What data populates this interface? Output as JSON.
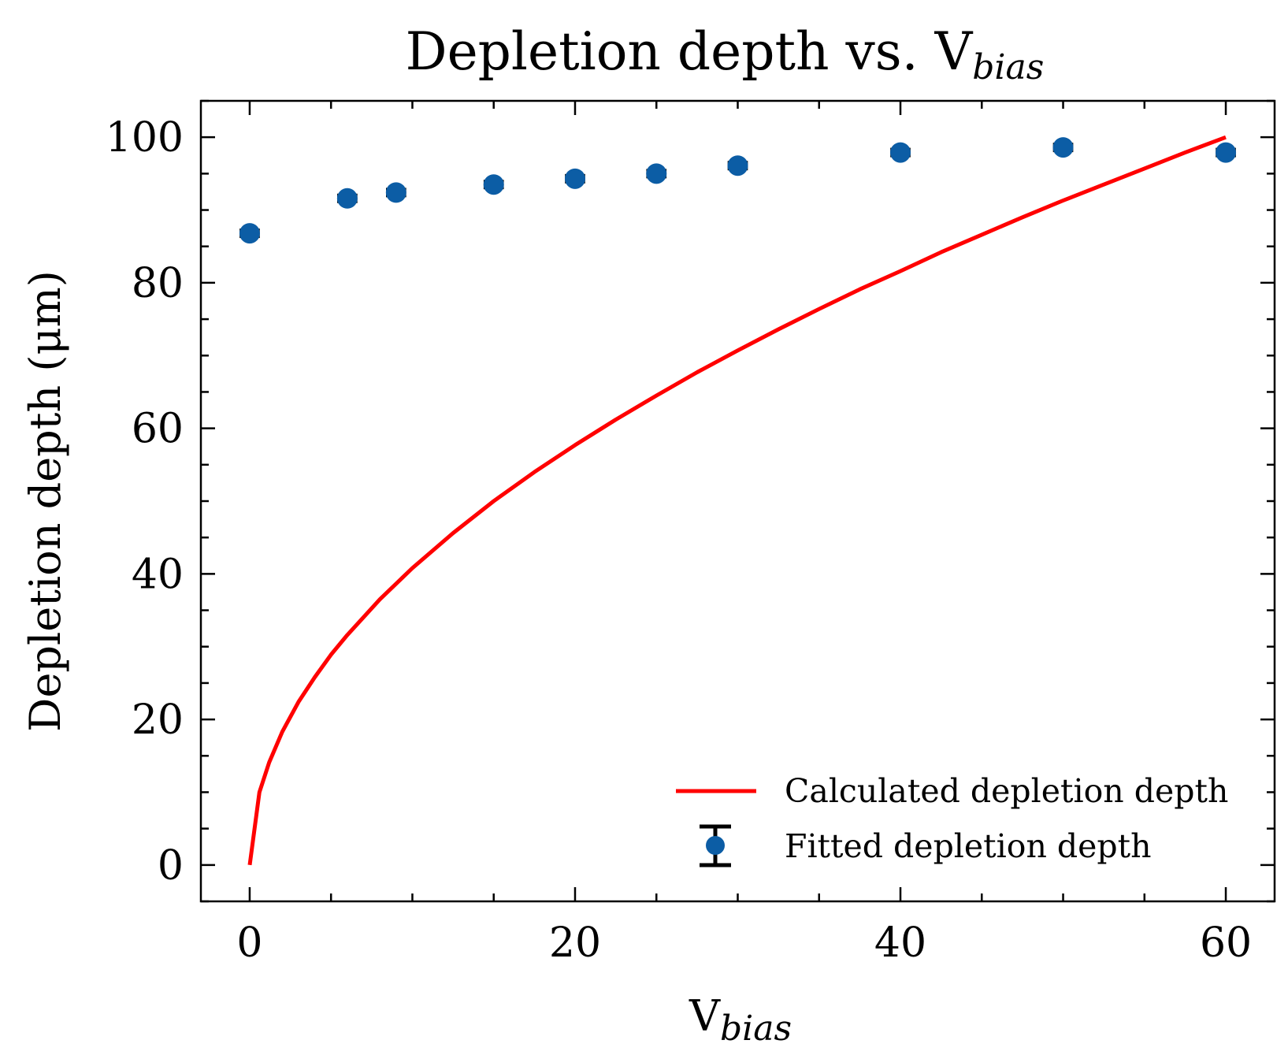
{
  "chart_data": {
    "type": "scatter",
    "title": "Depletion depth vs. V",
    "title_sub": "bias",
    "xlabel": "V",
    "xlabel_sub": "bias",
    "ylabel": "Depletion depth (μm)",
    "xlim": [
      -3,
      63
    ],
    "ylim": [
      -5,
      105
    ],
    "x_ticks": [
      0,
      20,
      40,
      60
    ],
    "y_ticks": [
      0,
      20,
      40,
      60,
      80,
      100
    ],
    "x_tick_labels": [
      "0",
      "20",
      "40",
      "60"
    ],
    "y_tick_labels": [
      "0",
      "20",
      "40",
      "60",
      "80",
      "100"
    ],
    "grid": false,
    "legend_position": "bottom-right",
    "series": [
      {
        "name": "Calculated depletion depth",
        "kind": "line",
        "color": "#ff0000",
        "formula": "y = 100 * sqrt(x / 60)",
        "x": [
          0,
          0.6,
          1.2,
          2,
          3,
          4,
          5,
          6,
          8,
          10,
          12.5,
          15,
          17.5,
          20,
          22.5,
          25,
          27.5,
          30,
          32.5,
          35,
          37.5,
          40,
          42.5,
          45,
          47.5,
          50,
          52.5,
          55,
          57.5,
          60
        ],
        "y": [
          0,
          10.0,
          14.1,
          18.3,
          22.4,
          25.8,
          28.9,
          31.6,
          36.5,
          40.8,
          45.6,
          50.0,
          54.0,
          57.7,
          61.2,
          64.5,
          67.7,
          70.7,
          73.6,
          76.4,
          79.1,
          81.6,
          84.2,
          86.6,
          89.0,
          91.3,
          93.5,
          95.7,
          97.9,
          100.0
        ]
      },
      {
        "name": "Fitted depletion depth",
        "kind": "errorbar",
        "color": "#0c5da5",
        "ecolor": "#000000",
        "x": [
          0,
          6,
          9,
          15,
          20,
          25,
          30,
          40,
          50,
          60
        ],
        "y": [
          86.8,
          91.6,
          92.4,
          93.5,
          94.3,
          95.0,
          96.1,
          97.9,
          98.6,
          97.9
        ],
        "xerr": [
          0.5,
          0.5,
          0.5,
          0.5,
          0.5,
          0.5,
          0.5,
          0.5,
          0.5,
          0.5
        ]
      }
    ]
  }
}
